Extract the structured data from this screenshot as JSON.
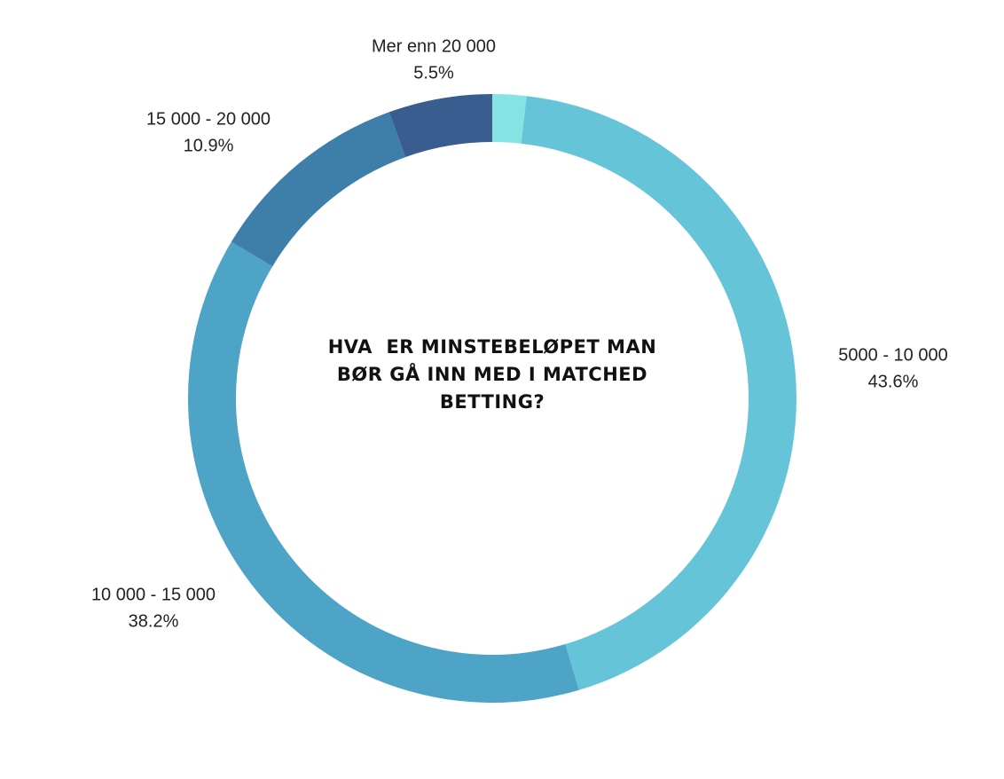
{
  "chart_data": {
    "type": "donut",
    "title": "HVA  ER MINSTEBELØPET MAN BØR GÅ INN MED I MATCHED BETTING?",
    "categories": [
      null,
      "5000 - 10 000",
      "10 000 - 15 000",
      "15 000 - 20 000",
      "Mer enn 20 000"
    ],
    "values": [
      1.8,
      43.6,
      38.2,
      10.9,
      5.5
    ],
    "value_labels": [
      null,
      "43.6%",
      "38.2%",
      "10.9%",
      "5.5%"
    ],
    "colors": [
      "#86e3e3",
      "#66c4d8",
      "#4ea4c6",
      "#3e7faa",
      "#3a5d90"
    ]
  }
}
